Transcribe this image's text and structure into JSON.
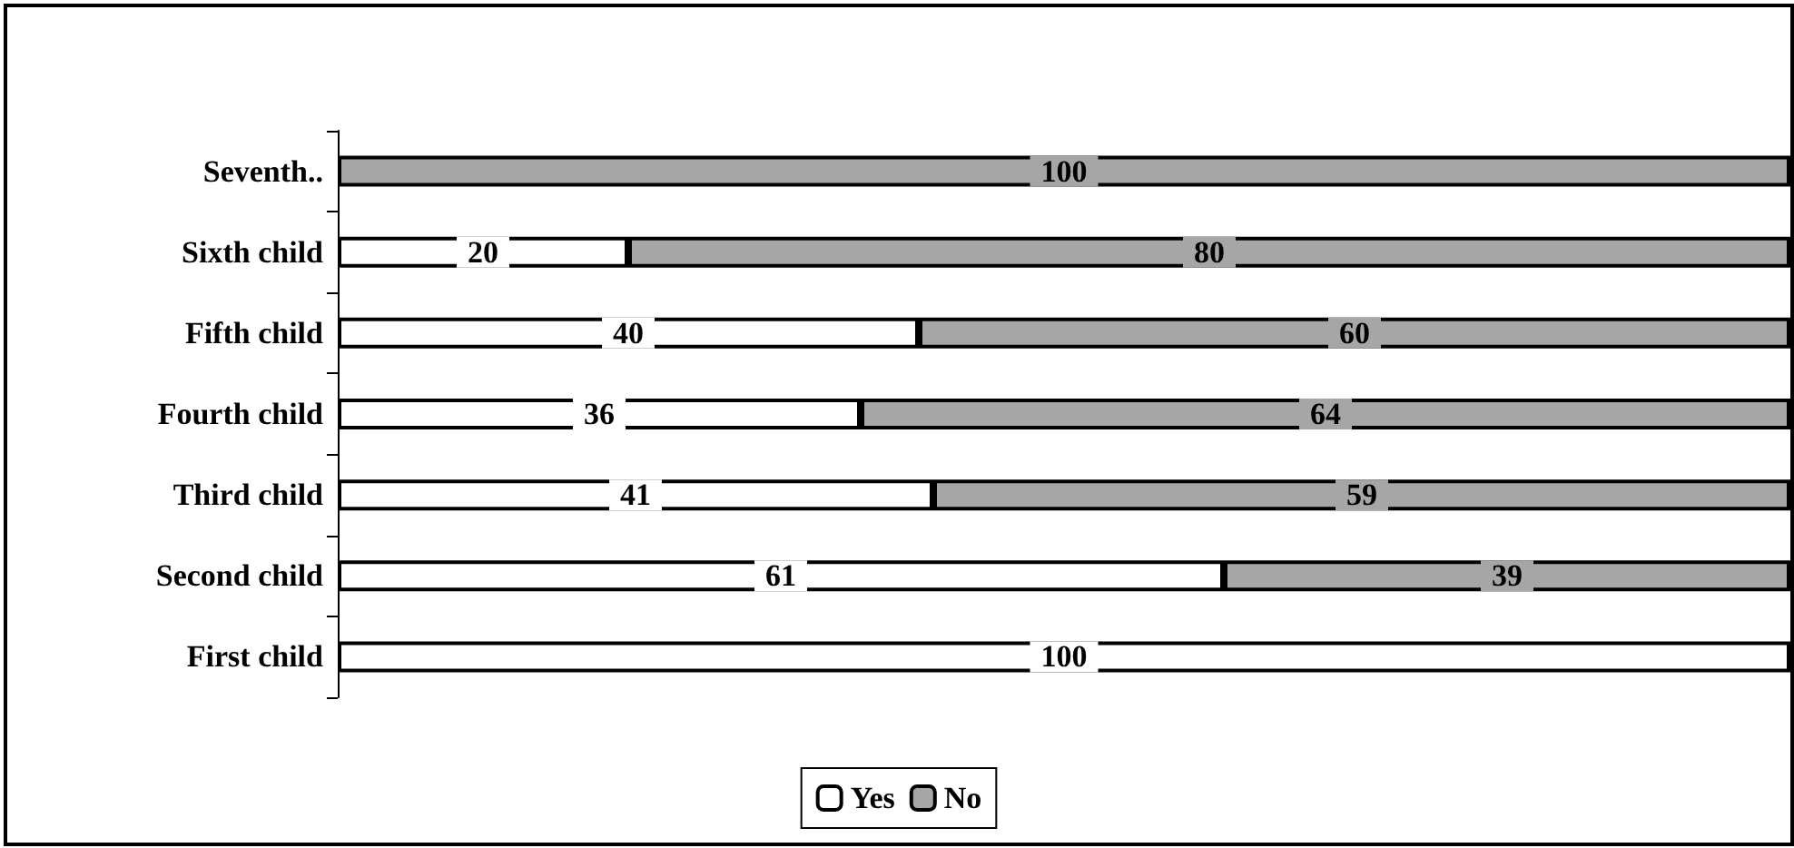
{
  "chart_data": {
    "type": "bar",
    "orientation": "horizontal",
    "stacked": true,
    "data_labels": true,
    "legend": "bottom",
    "grid": false,
    "categories": [
      "Seventh..",
      "Sixth child",
      "Fifth child",
      "Fourth child",
      "Third child",
      "Second child",
      "First child"
    ],
    "series": [
      {
        "name": "Yes",
        "color": "#ffffff",
        "values": [
          null,
          20,
          40,
          36,
          41,
          61,
          100
        ]
      },
      {
        "name": "No",
        "color": "#a6a6a6",
        "values": [
          100,
          80,
          60,
          64,
          59,
          39,
          null
        ]
      }
    ]
  }
}
